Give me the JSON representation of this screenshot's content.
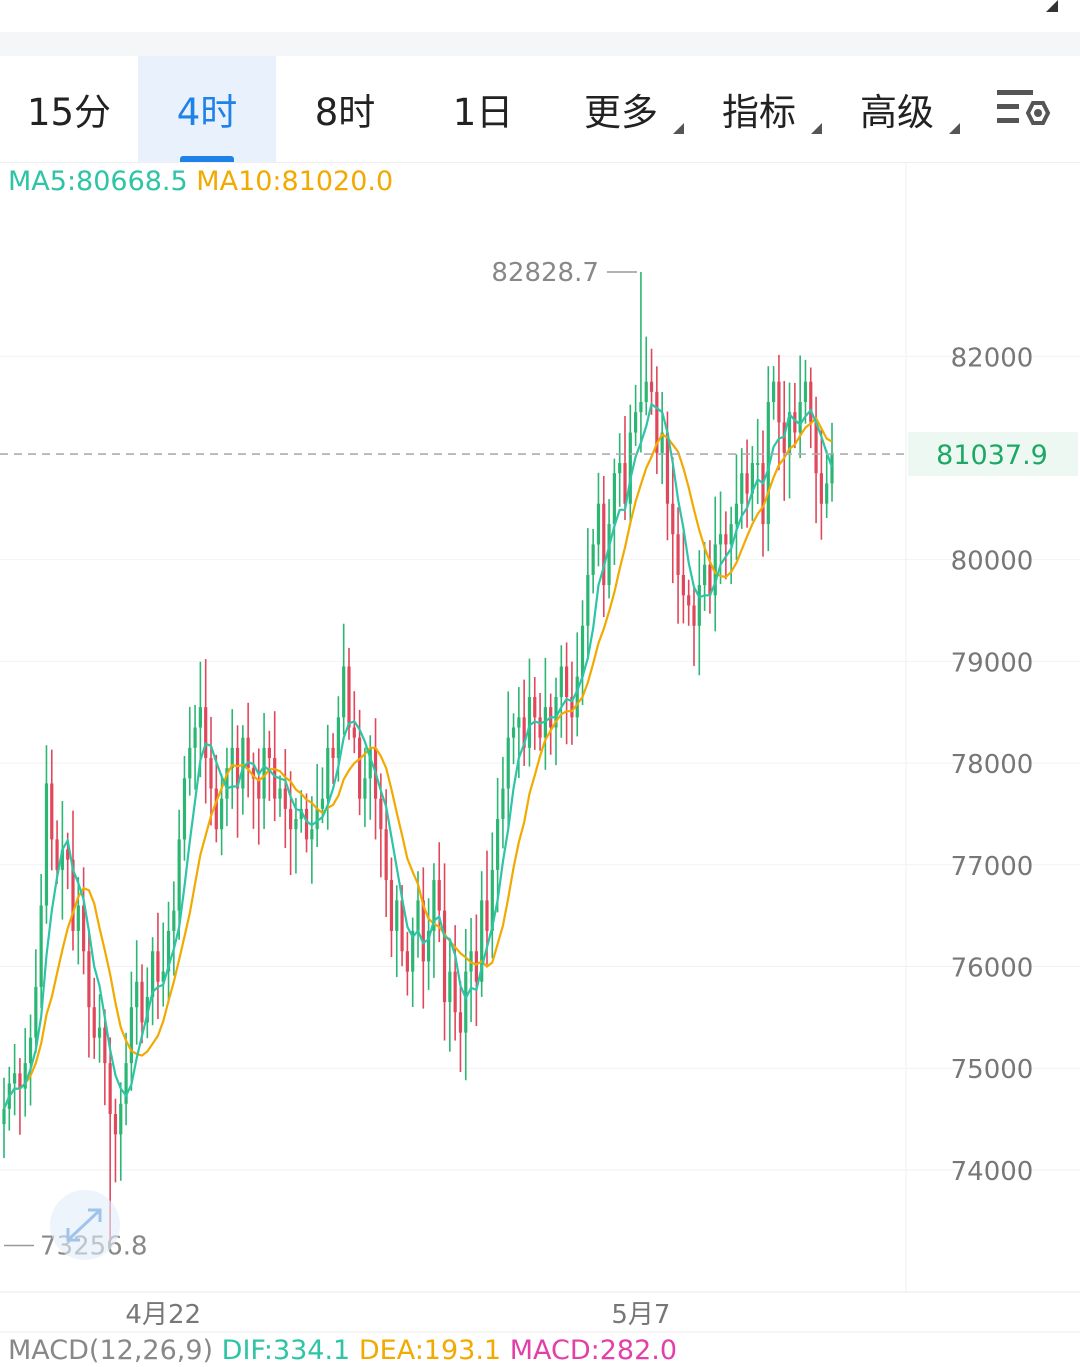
{
  "tabs": [
    {
      "label": "15分",
      "active": false,
      "dropdown": false
    },
    {
      "label": "4时",
      "active": true,
      "dropdown": false
    },
    {
      "label": "8时",
      "active": false,
      "dropdown": false
    },
    {
      "label": "1日",
      "active": false,
      "dropdown": false
    },
    {
      "label": "更多",
      "active": false,
      "dropdown": true
    },
    {
      "label": "指标",
      "active": false,
      "dropdown": true
    },
    {
      "label": "高级",
      "active": false,
      "dropdown": true
    }
  ],
  "settings_icon": "chart-settings-icon",
  "legend": {
    "ma5_label": "MA5:80668.5",
    "ma10_label": "MA10:81020.0"
  },
  "colors": {
    "up": "#2bb673",
    "down": "#e0475b",
    "ma5": "#2ec4a6",
    "ma10": "#f2a900",
    "accent": "#1f82e8",
    "current_price": "#1da866"
  },
  "chart_data": {
    "type": "candlestick",
    "y_ticks": [
      "82000",
      "80000",
      "79000",
      "78000",
      "77000",
      "76000",
      "75000",
      "74000"
    ],
    "ylim": [
      72800,
      83900
    ],
    "x_labels": [
      {
        "label": "4月22",
        "index": 30
      },
      {
        "label": "5月7",
        "index": 120
      }
    ],
    "high_label": {
      "text": "82828.7",
      "value": 82828.7,
      "index": 120
    },
    "low_label": {
      "text": "73256.8",
      "value": 73256.8,
      "index": 20
    },
    "current_price": {
      "text": "81037.9",
      "value": 81037.9
    },
    "close": [
      74600,
      74850,
      74950,
      74800,
      75050,
      75300,
      75800,
      76600,
      77800,
      77250,
      76950,
      77150,
      77050,
      76350,
      76600,
      76150,
      75600,
      75300,
      75400,
      75050,
      74550,
      74350,
      74650,
      75050,
      75600,
      75850,
      75450,
      75700,
      76150,
      75850,
      75950,
      76350,
      76550,
      77250,
      77850,
      78150,
      78350,
      78550,
      78050,
      77750,
      77350,
      77650,
      77950,
      78150,
      77750,
      78250,
      77950,
      77850,
      77650,
      78150,
      78050,
      77650,
      77750,
      77550,
      77350,
      77450,
      77550,
      77250,
      77350,
      77550,
      77650,
      78150,
      78050,
      78450,
      78950,
      78350,
      78250,
      77650,
      77850,
      78150,
      77650,
      77350,
      76850,
      76350,
      76650,
      76150,
      75950,
      76350,
      76650,
      76050,
      76350,
      76850,
      76550,
      75650,
      75950,
      75550,
      75350,
      75950,
      76150,
      75850,
      76650,
      76350,
      76950,
      77450,
      77750,
      78250,
      78350,
      78450,
      78150,
      78650,
      78450,
      78250,
      78550,
      78350,
      78650,
      78950,
      78650,
      78450,
      78850,
      79350,
      79850,
      80150,
      80550,
      79750,
      80350,
      80850,
      80950,
      80550,
      81250,
      81450,
      81550,
      81750,
      81650,
      81050,
      81250,
      80550,
      80250,
      79850,
      79650,
      79550,
      79350,
      79750,
      79950,
      79650,
      80150,
      80250,
      80150,
      80350,
      80550,
      80850,
      80650,
      80950,
      80950,
      80350,
      81550,
      81750,
      81350,
      81050,
      81450,
      81250,
      81550,
      81750,
      81350,
      80850,
      80550,
      80750,
      81050
    ]
  },
  "macd_legend": {
    "name": "MACD(12,26,9)",
    "dif": "DIF:334.1",
    "dea": "DEA:193.1",
    "macd": "MACD:282.0"
  }
}
